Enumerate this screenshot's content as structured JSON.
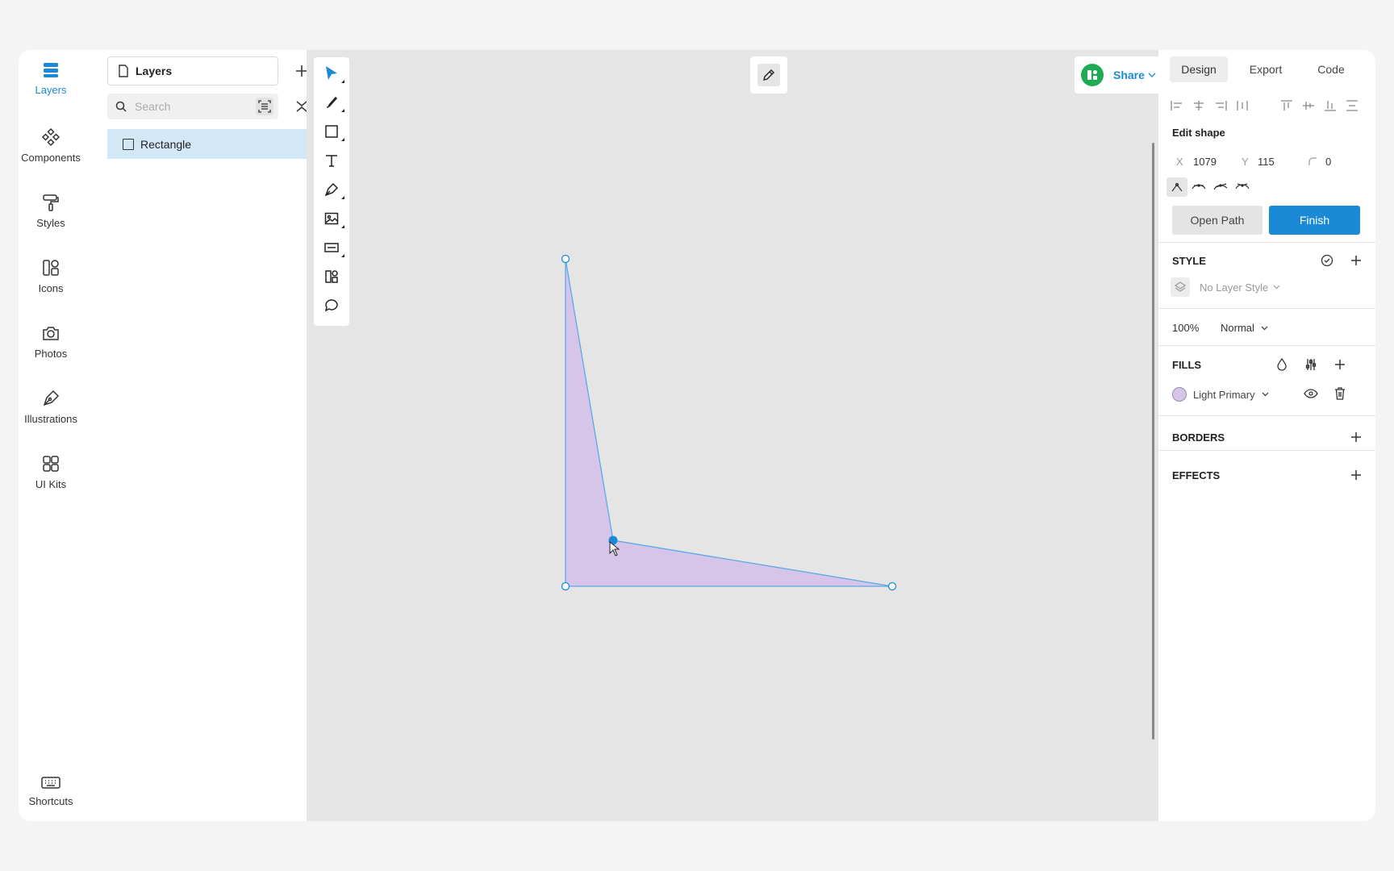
{
  "rail": {
    "layers": "Layers",
    "components": "Components",
    "styles": "Styles",
    "icons": "Icons",
    "photos": "Photos",
    "illustrations": "Illustrations",
    "ui_kits": "UI Kits",
    "shortcuts": "Shortcuts"
  },
  "layers_panel": {
    "tab_label": "Layers",
    "search_placeholder": "Search",
    "items": [
      {
        "label": "Rectangle"
      }
    ]
  },
  "canvas": {
    "share_label": "Share",
    "tools": [
      "select-tool",
      "brush-tool",
      "rectangle-tool",
      "text-tool",
      "pen-tool",
      "image-tool",
      "input-tool",
      "components-tool",
      "comment-tool"
    ]
  },
  "right_panel": {
    "tabs": [
      "Design",
      "Export",
      "Code"
    ],
    "active_tab": "Design",
    "edit_shape_title": "Edit shape",
    "x_label": "X",
    "x_value": "1079",
    "y_label": "Y",
    "y_value": "115",
    "radius_value": "0",
    "open_path_label": "Open Path",
    "finish_label": "Finish",
    "style_title": "STYLE",
    "layer_style": "No Layer Style",
    "opacity": "100%",
    "blend_mode": "Normal",
    "fills_title": "FILLS",
    "fill_name": "Light Primary",
    "borders_title": "BORDERS",
    "effects_title": "EFFECTS"
  },
  "colors": {
    "accent": "#1a8ad6",
    "shape_fill": "#d6c5e8",
    "shape_stroke": "#5aaae8",
    "selected_layer_bg": "#d3e8f6"
  }
}
